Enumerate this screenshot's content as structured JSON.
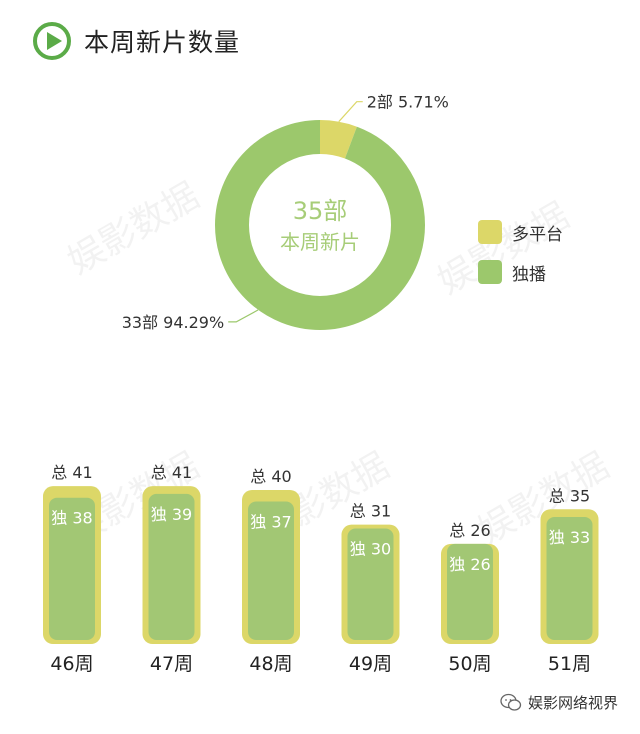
{
  "header": {
    "title": "本周新片数量",
    "icon": "play-icon"
  },
  "colors": {
    "accent_green": "#9dc96a",
    "ring_green": "#9cc86c",
    "yellow": "#dcd768",
    "bar_green": "#a2c774",
    "text_green": "#a7cd78"
  },
  "donut": {
    "center_value": "35部",
    "center_label": "本周新片",
    "slices": [
      {
        "name": "多平台",
        "count_label": "2部",
        "percent_label": "5.71%",
        "value": 2,
        "color": "#dcd768"
      },
      {
        "name": "独播",
        "count_label": "33部",
        "percent_label": "94.29%",
        "value": 33,
        "color": "#9cc86c"
      }
    ]
  },
  "legend": [
    {
      "label": "多平台",
      "color": "#dcd768"
    },
    {
      "label": "独播",
      "color": "#9cc86c"
    }
  ],
  "chart_data": [
    {
      "type": "pie",
      "title": "本周新片数量",
      "center_text": [
        "35部",
        "本周新片"
      ],
      "categories": [
        "多平台",
        "独播"
      ],
      "values": [
        2,
        33
      ],
      "percentages": [
        5.71,
        94.29
      ],
      "legend_position": "right"
    },
    {
      "type": "bar",
      "categories": [
        "46周",
        "47周",
        "48周",
        "49周",
        "50周",
        "51周"
      ],
      "series": [
        {
          "name": "总",
          "values": [
            41,
            41,
            40,
            31,
            26,
            35
          ]
        },
        {
          "name": "独",
          "values": [
            38,
            39,
            37,
            30,
            26,
            33
          ]
        }
      ]
    }
  ],
  "bars": {
    "total_prefix": "总",
    "exclusive_prefix": "独",
    "weeks": [
      {
        "week": "46周",
        "total": 41,
        "exclusive": 38
      },
      {
        "week": "47周",
        "total": 41,
        "exclusive": 39
      },
      {
        "week": "48周",
        "total": 40,
        "exclusive": 37
      },
      {
        "week": "49周",
        "total": 31,
        "exclusive": 30
      },
      {
        "week": "50周",
        "total": 26,
        "exclusive": 26
      },
      {
        "week": "51周",
        "total": 35,
        "exclusive": 33
      }
    ]
  },
  "watermark": "娱影数据",
  "footer": {
    "text": "娱影网络视界",
    "icon": "wechat-icon"
  }
}
